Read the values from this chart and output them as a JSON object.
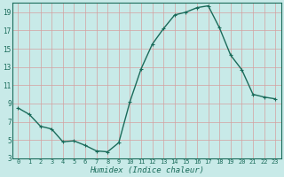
{
  "x": [
    0,
    1,
    2,
    3,
    4,
    5,
    6,
    7,
    8,
    9,
    10,
    11,
    12,
    13,
    14,
    15,
    16,
    17,
    18,
    19,
    20,
    21,
    22,
    23
  ],
  "y": [
    8.5,
    7.8,
    6.5,
    6.2,
    4.8,
    4.9,
    4.4,
    3.8,
    3.7,
    4.7,
    9.2,
    12.8,
    15.5,
    17.2,
    18.7,
    19.0,
    19.5,
    19.7,
    17.3,
    14.3,
    12.7,
    10.0,
    9.7,
    9.5
  ],
  "line_color": "#1a6b5a",
  "marker_color": "#1a6b5a",
  "bg_color": "#c8eae8",
  "grid_color": "#b0d4d0",
  "xlabel": "Humidex (Indice chaleur)",
  "xlim": [
    -0.5,
    23.5
  ],
  "ylim": [
    3,
    20
  ],
  "yticks": [
    3,
    5,
    7,
    9,
    11,
    13,
    15,
    17,
    19
  ],
  "xticks": [
    0,
    1,
    2,
    3,
    4,
    5,
    6,
    7,
    8,
    9,
    10,
    11,
    12,
    13,
    14,
    15,
    16,
    17,
    18,
    19,
    20,
    21,
    22,
    23
  ],
  "xtick_labels": [
    "0",
    "1",
    "2",
    "3",
    "4",
    "5",
    "6",
    "7",
    "8",
    "9",
    "10",
    "11",
    "12",
    "13",
    "14",
    "15",
    "16",
    "17",
    "18",
    "19",
    "20",
    "21",
    "22",
    "23"
  ],
  "font_color": "#1a6b5a",
  "marker_size": 2.5,
  "line_width": 1.0
}
